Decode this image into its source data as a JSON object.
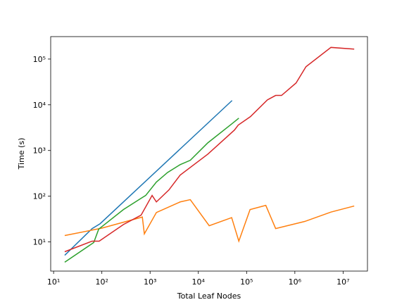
{
  "chart_data": {
    "type": "line",
    "xlabel": "Total Leaf Nodes",
    "ylabel": "Time (s)",
    "xscale": "log",
    "yscale": "log",
    "xlim": [
      8.7,
      32000000
    ],
    "ylim": [
      2.3,
      310000
    ],
    "xticks": [
      {
        "value": 10,
        "label": "10¹"
      },
      {
        "value": 100,
        "label": "10²"
      },
      {
        "value": 1000,
        "label": "10³"
      },
      {
        "value": 10000,
        "label": "10⁴"
      },
      {
        "value": 100000,
        "label": "10⁵"
      },
      {
        "value": 1000000,
        "label": "10⁶"
      },
      {
        "value": 10000000,
        "label": "10⁷"
      }
    ],
    "yticks": [
      {
        "value": 10,
        "label": "10¹"
      },
      {
        "value": 100,
        "label": "10²"
      },
      {
        "value": 1000,
        "label": "10³"
      },
      {
        "value": 10000,
        "label": "10⁴"
      },
      {
        "value": 100000,
        "label": "10⁵"
      }
    ],
    "grid": false,
    "series": [
      {
        "color": "#1f77b4",
        "x": [
          17,
          63,
          92,
          50000
        ],
        "values": [
          5.1,
          19.6,
          25,
          12400
        ]
      },
      {
        "color": "#ff7f0e",
        "x": [
          17,
          100,
          690,
          760,
          1350,
          4200,
          6800,
          16800,
          49000,
          69000,
          118000,
          250000,
          400000,
          1600000,
          5600000,
          17000000
        ],
        "values": [
          13.8,
          20,
          35,
          15,
          44,
          75,
          84,
          22.6,
          34,
          10.4,
          51,
          63,
          19.6,
          28,
          45,
          61
        ]
      },
      {
        "color": "#2ca02c",
        "x": [
          17,
          68,
          86,
          280,
          650,
          810,
          1350,
          2300,
          4200,
          6800,
          15700,
          49000,
          69000
        ],
        "values": [
          3.6,
          9.7,
          19,
          51,
          90,
          104,
          204,
          330,
          490,
          610,
          1470,
          3800,
          5100
        ]
      },
      {
        "color": "#d62728",
        "x": [
          17,
          63,
          88,
          280,
          650,
          1100,
          1350,
          2450,
          4200,
          15700,
          56000,
          67000,
          120000,
          270000,
          400000,
          530000,
          1060000,
          1700000,
          5600000,
          17000000
        ],
        "values": [
          6.1,
          10.4,
          10.4,
          24,
          38.5,
          104,
          75,
          137,
          290,
          830,
          2800,
          3600,
          5500,
          12800,
          16000,
          16000,
          30000,
          68000,
          180000,
          165000
        ]
      }
    ]
  }
}
